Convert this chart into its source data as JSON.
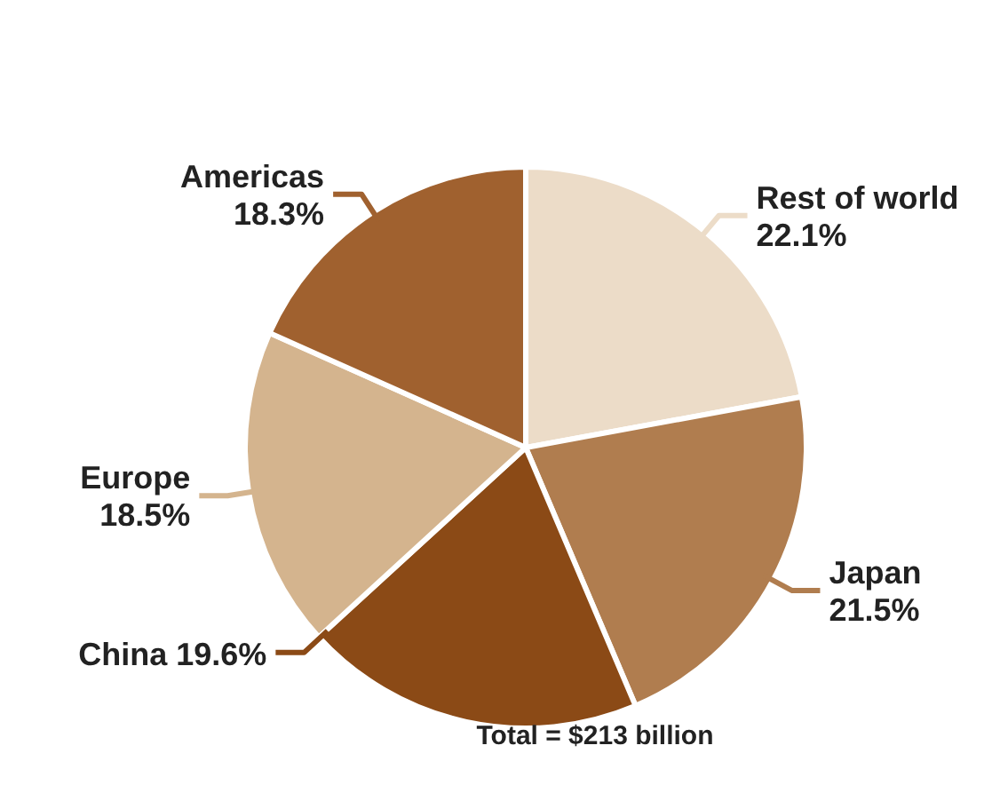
{
  "chart_data": {
    "type": "pie",
    "categories": [
      "Rest of world",
      "Japan",
      "China",
      "Europe",
      "Americas"
    ],
    "values": [
      22.1,
      21.5,
      19.6,
      18.5,
      18.3
    ],
    "value_labels": [
      "22.1%",
      "21.5%",
      "19.6%",
      "18.5%",
      "18.3%"
    ],
    "colors": [
      "#ecdcc8",
      "#b07d4f",
      "#8b4a16",
      "#d4b48e",
      "#a0612f"
    ],
    "annotations": [
      "Total = $213 billion"
    ]
  }
}
